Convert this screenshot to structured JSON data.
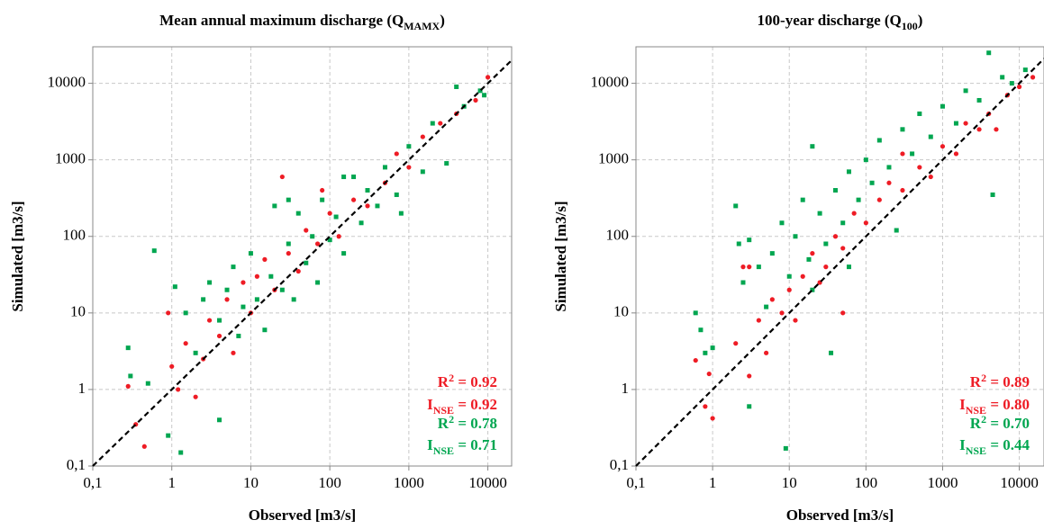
{
  "chart_data": [
    {
      "type": "scatter",
      "title": "Mean annual maximum discharge (Q",
      "title_subscript": "MAMX",
      "title_suffix": ")",
      "x_label": "Observed [m3/s]",
      "y_label": "Simulated [m3/s]",
      "log_x": true,
      "log_y": true,
      "grid": true,
      "xlim": [
        0.1,
        20000
      ],
      "ylim": [
        0.1,
        30000
      ],
      "xticks": [
        {
          "value": 0.1,
          "label": "0,1"
        },
        1,
        10,
        100,
        1000,
        10000
      ],
      "yticks": [
        {
          "value": 0.1,
          "label": "0,1"
        },
        1,
        10,
        100,
        1000,
        10000
      ],
      "series": [
        {
          "color": "#00a650",
          "marker": "square",
          "x": [
            0.28,
            0.3,
            0.5,
            0.6,
            0.9,
            1.1,
            1.3,
            1.5,
            2,
            2.5,
            3,
            4,
            4,
            5,
            6,
            7,
            8,
            10,
            12,
            15,
            18,
            20,
            25,
            30,
            35,
            40,
            50,
            60,
            70,
            80,
            100,
            120,
            150,
            200,
            250,
            300,
            400,
            500,
            700,
            1000,
            1500,
            2000,
            3000,
            4000,
            5000,
            8000,
            9000,
            150,
            30,
            800
          ],
          "y": [
            3.5,
            1.5,
            1.2,
            65,
            0.25,
            22,
            0.15,
            10,
            3,
            15,
            25,
            0.4,
            8,
            20,
            40,
            5,
            12,
            60,
            15,
            6,
            30,
            250,
            20,
            80,
            15,
            200,
            45,
            100,
            25,
            300,
            90,
            180,
            60,
            600,
            150,
            400,
            250,
            800,
            350,
            1500,
            700,
            3000,
            900,
            9000,
            5000,
            8000,
            7000,
            600,
            300,
            200
          ]
        },
        {
          "color": "#ee1c25",
          "marker": "circle",
          "x": [
            0.28,
            0.35,
            0.45,
            0.9,
            1,
            1.2,
            1.5,
            2,
            2.5,
            3,
            4,
            5,
            6,
            8,
            10,
            12,
            15,
            20,
            30,
            40,
            50,
            70,
            100,
            130,
            200,
            300,
            500,
            700,
            1000,
            1500,
            2500,
            4000,
            7000,
            10000,
            25,
            80
          ],
          "y": [
            1.1,
            0.35,
            0.18,
            10,
            2,
            1,
            4,
            0.8,
            2.5,
            8,
            5,
            15,
            3,
            25,
            10,
            30,
            50,
            20,
            60,
            35,
            120,
            80,
            200,
            100,
            300,
            250,
            500,
            1200,
            800,
            2000,
            3000,
            4000,
            6000,
            12000,
            600,
            400
          ]
        }
      ],
      "annotations": [
        {
          "text": "R",
          "sup": "2",
          "suffix": " = 0.92",
          "color": "#ee1c25"
        },
        {
          "text": "I",
          "sub": "NSE",
          "suffix": " = 0.92",
          "color": "#ee1c25"
        },
        {
          "text": "R",
          "sup": "2",
          "suffix": " = 0.78",
          "color": "#00a650"
        },
        {
          "text": "I",
          "sub": "NSE",
          "suffix": " = 0.71",
          "color": "#00a650"
        }
      ]
    },
    {
      "type": "scatter",
      "title": "100-year discharge (Q",
      "title_subscript": "100",
      "title_suffix": ")",
      "x_label": "Observed [m3/s]",
      "y_label": "Simulated [m3/s]",
      "log_x": true,
      "log_y": true,
      "grid": true,
      "xlim": [
        0.1,
        21000
      ],
      "ylim": [
        0.1,
        30000
      ],
      "xticks": [
        {
          "value": 0.1,
          "label": "0,1"
        },
        1,
        10,
        100,
        1000,
        10000
      ],
      "yticks": [
        {
          "value": 0.1,
          "label": "0,1"
        },
        1,
        10,
        100,
        1000,
        10000
      ],
      "series": [
        {
          "color": "#00a650",
          "marker": "square",
          "x": [
            0.6,
            0.7,
            0.8,
            1,
            2,
            2.2,
            2.5,
            3,
            3,
            4,
            5,
            6,
            8,
            9,
            10,
            12,
            15,
            18,
            20,
            25,
            30,
            35,
            40,
            50,
            60,
            80,
            100,
            120,
            150,
            200,
            300,
            400,
            500,
            700,
            1000,
            1500,
            2000,
            3000,
            4000,
            4500,
            6000,
            8000,
            12000,
            250,
            60,
            20
          ],
          "y": [
            10,
            6,
            3,
            3.5,
            250,
            80,
            25,
            0.6,
            90,
            40,
            12,
            60,
            150,
            0.17,
            30,
            100,
            300,
            50,
            1500,
            200,
            80,
            3,
            400,
            150,
            700,
            300,
            1000,
            500,
            1800,
            800,
            2500,
            1200,
            4000,
            2000,
            5000,
            3000,
            8000,
            6000,
            25000,
            350,
            12000,
            10000,
            15000,
            120,
            40,
            20
          ]
        },
        {
          "color": "#ee1c25",
          "marker": "circle",
          "x": [
            0.6,
            0.8,
            0.9,
            1,
            2,
            2.5,
            3,
            4,
            5,
            6,
            8,
            10,
            12,
            15,
            20,
            25,
            30,
            40,
            50,
            70,
            100,
            150,
            200,
            300,
            500,
            700,
            1000,
            1500,
            2000,
            3000,
            4000,
            5000,
            7000,
            10000,
            15000,
            50,
            3,
            300
          ],
          "y": [
            2.4,
            0.6,
            1.6,
            0.42,
            4,
            40,
            1.5,
            8,
            3,
            15,
            10,
            20,
            8,
            30,
            60,
            25,
            40,
            100,
            70,
            200,
            150,
            300,
            500,
            400,
            800,
            600,
            1500,
            1200,
            3000,
            2500,
            4000,
            2500,
            7000,
            9000,
            12000,
            10,
            40,
            1200
          ]
        }
      ],
      "annotations": [
        {
          "text": "R",
          "sup": "2",
          "suffix": " = 0.89",
          "color": "#ee1c25"
        },
        {
          "text": "I",
          "sub": "NSE",
          "suffix": " = 0.80",
          "color": "#ee1c25"
        },
        {
          "text": "R",
          "sup": "2",
          "suffix": " = 0.70",
          "color": "#00a650"
        },
        {
          "text": "I",
          "sub": "NSE",
          "suffix": " = 0.44",
          "color": "#00a650"
        }
      ]
    }
  ]
}
